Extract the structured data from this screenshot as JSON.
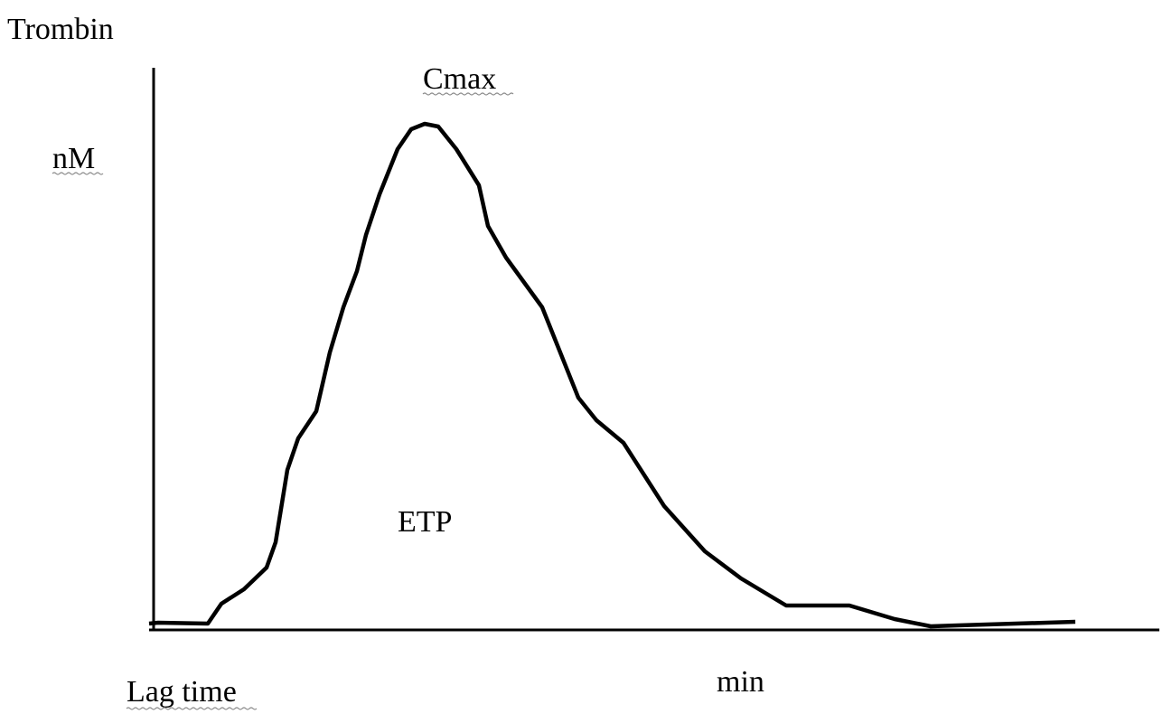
{
  "title": "Trombin",
  "y_unit": "nM",
  "peak_label": "Cmax",
  "area_label": "ETP",
  "lag_label": "Lag time",
  "x_unit": "min"
}
